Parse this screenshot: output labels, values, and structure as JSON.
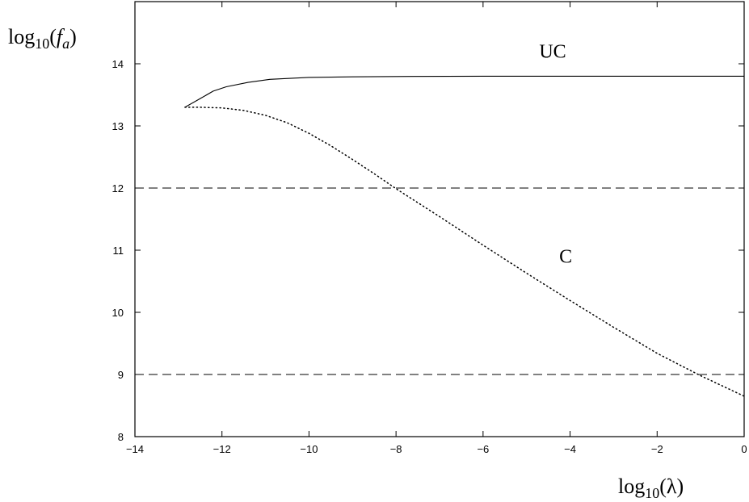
{
  "chart_data": {
    "type": "line",
    "xlabel": "log10(λ)",
    "ylabel": "log10(fa)",
    "xlim": [
      -14,
      0
    ],
    "ylim": [
      8,
      15
    ],
    "xticks": [
      -14,
      -12,
      -10,
      -8,
      -6,
      -4,
      -2,
      0
    ],
    "yticks": [
      8,
      9,
      10,
      11,
      12,
      13,
      14
    ],
    "grid": false,
    "series": [
      {
        "name": "UC",
        "style": "solid",
        "x": [
          -12.85,
          -12.5,
          -12.2,
          -11.9,
          -11.4,
          -10.9,
          -10.0,
          -9.0,
          -8.0,
          -6.0,
          -4.0,
          -2.0,
          0.0
        ],
        "y": [
          13.3,
          13.44,
          13.56,
          13.63,
          13.7,
          13.75,
          13.78,
          13.79,
          13.795,
          13.8,
          13.8,
          13.8,
          13.8
        ]
      },
      {
        "name": "C",
        "style": "dotted",
        "x": [
          -12.85,
          -12.5,
          -12.0,
          -11.5,
          -11.0,
          -10.5,
          -10.0,
          -9.5,
          -9.0,
          -8.5,
          -8.0,
          -7.0,
          -6.0,
          -5.0,
          -4.0,
          -3.0,
          -2.0,
          -1.0,
          0.0
        ],
        "y": [
          13.3,
          13.3,
          13.29,
          13.25,
          13.17,
          13.05,
          12.88,
          12.68,
          12.46,
          12.23,
          11.99,
          11.54,
          11.08,
          10.63,
          10.19,
          9.76,
          9.34,
          8.98,
          8.65
        ]
      }
    ],
    "reference_lines": [
      {
        "y": 12,
        "style": "dashed"
      },
      {
        "y": 9,
        "style": "dashed"
      }
    ],
    "annotations": [
      {
        "text": "UC",
        "x": -4.4,
        "y": 14.1
      },
      {
        "text": "C",
        "x": -4.1,
        "y": 10.8
      }
    ]
  }
}
